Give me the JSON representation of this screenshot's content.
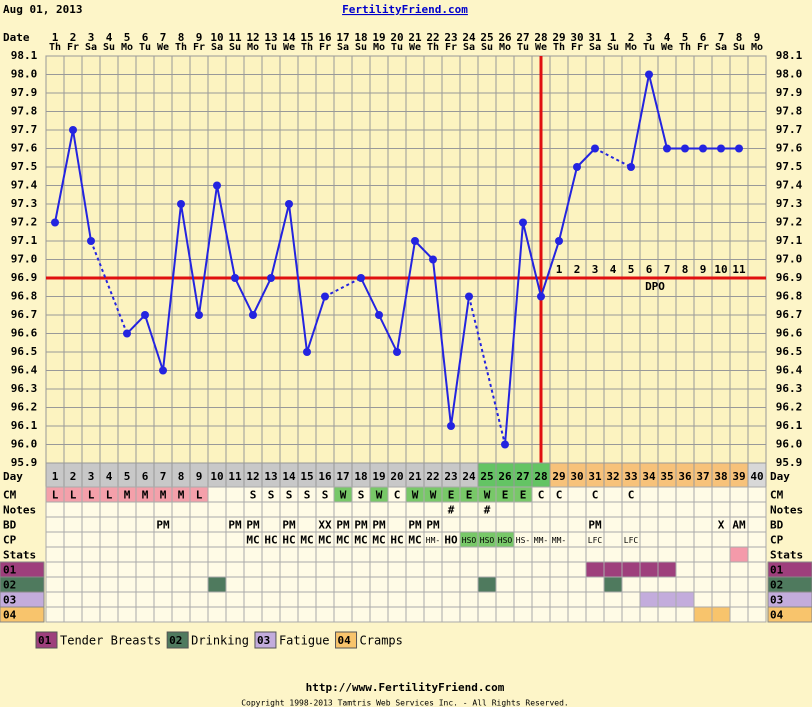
{
  "header": {
    "date": "Aug 01, 2013",
    "site": "FertilityFriend.com"
  },
  "chart_data": {
    "type": "line",
    "date_label": "Date",
    "dates": [
      1,
      2,
      3,
      4,
      5,
      6,
      7,
      8,
      9,
      10,
      11,
      12,
      13,
      14,
      15,
      16,
      17,
      18,
      19,
      20,
      21,
      22,
      23,
      24,
      25,
      26,
      27,
      28,
      29,
      30,
      31,
      1,
      2,
      3,
      4,
      5,
      6,
      7,
      8,
      9
    ],
    "weekdays": [
      "Th",
      "Fr",
      "Sa",
      "Su",
      "Mo",
      "Tu",
      "We",
      "Th",
      "Fr",
      "Sa",
      "Su",
      "Mo",
      "Tu",
      "We",
      "Th",
      "Fr",
      "Sa",
      "Su",
      "Mo",
      "Tu",
      "We",
      "Th",
      "Fr",
      "Sa",
      "Su",
      "Mo",
      "Tu",
      "We",
      "Th",
      "Fr",
      "Sa",
      "Su",
      "Mo",
      "Tu",
      "We",
      "Th",
      "Fr",
      "Sa",
      "Su",
      "Mo"
    ],
    "day_label": "Day",
    "categories": [
      1,
      2,
      3,
      4,
      5,
      6,
      7,
      8,
      9,
      10,
      11,
      12,
      13,
      14,
      15,
      16,
      17,
      18,
      19,
      20,
      21,
      22,
      23,
      24,
      25,
      26,
      27,
      28,
      29,
      30,
      31,
      32,
      33,
      34,
      35,
      36,
      37,
      38,
      39,
      40
    ],
    "day_fills": [
      "#c8c8c8",
      "#c8c8c8",
      "#c8c8c8",
      "#c8c8c8",
      "#c8c8c8",
      "#c8c8c8",
      "#c8c8c8",
      "#c8c8c8",
      "#c8c8c8",
      "#c8c8c8",
      "#c8c8c8",
      "#c8c8c8",
      "#c8c8c8",
      "#c8c8c8",
      "#c8c8c8",
      "#c8c8c8",
      "#c8c8c8",
      "#c8c8c8",
      "#c8c8c8",
      "#c8c8c8",
      "#c8c8c8",
      "#c8c8c8",
      "#c8c8c8",
      "#c8c8c8",
      "#64c464",
      "#64c464",
      "#64c464",
      "#64c464",
      "#f7c27a",
      "#f7c27a",
      "#f7c27a",
      "#f7c27a",
      "#f7c27a",
      "#f7c27a",
      "#f7c27a",
      "#f7c27a",
      "#f7c27a",
      "#f7c27a",
      "#f7c27a",
      "#d8d8d8"
    ],
    "values": [
      97.2,
      97.7,
      97.1,
      null,
      96.6,
      96.7,
      96.4,
      97.3,
      96.7,
      97.4,
      96.9,
      96.7,
      96.9,
      97.3,
      96.5,
      96.8,
      null,
      96.9,
      96.7,
      96.5,
      97.1,
      97.0,
      96.1,
      96.8,
      null,
      96.0,
      97.2,
      96.8,
      97.1,
      97.5,
      97.6,
      null,
      97.5,
      98.0,
      97.6,
      97.6,
      97.6,
      97.6,
      97.6,
      null
    ],
    "color": "#2424e0",
    "ylim": [
      95.9,
      98.1
    ],
    "yticks": [
      95.9,
      {
        "value": 96,
        "label": "96.0"
      },
      96.1,
      96.2,
      96.3,
      96.4,
      96.5,
      96.6,
      96.7,
      96.8,
      96.9,
      {
        "value": 97,
        "label": "97.0"
      },
      97.1,
      97.2,
      97.3,
      97.4,
      97.5,
      97.6,
      97.7,
      97.8,
      97.9,
      {
        "value": 98,
        "label": "98.0"
      },
      98.1
    ],
    "grid": true,
    "coverline": 96.9,
    "ovulation_day": 28,
    "line_color": "#e01010",
    "dpo": [
      1,
      2,
      3,
      4,
      5,
      6,
      7,
      8,
      9,
      10,
      11
    ],
    "dpo_label": "DPO"
  },
  "rows": [
    {
      "label": "CM",
      "cells": [
        "L",
        "L",
        "L",
        "L",
        "M",
        "M",
        "M",
        "M",
        "L",
        null,
        null,
        "S",
        "S",
        "S",
        "S",
        "S",
        "W",
        "S",
        "W",
        "C",
        "W",
        "W",
        "E",
        "E",
        "W",
        "E",
        "E",
        "C",
        "C",
        null,
        "C",
        null,
        "C",
        null,
        null,
        null,
        null,
        null,
        null,
        null
      ],
      "fills": [
        "#f4a0aa",
        "#f4a0aa",
        "#f4a0aa",
        "#f4a0aa",
        "#f4a0aa",
        "#f4a0aa",
        "#f4a0aa",
        "#f4a0aa",
        "#f4a0aa",
        null,
        null,
        null,
        null,
        null,
        null,
        null,
        "#78c868",
        null,
        "#78c868",
        null,
        "#78c868",
        "#78c868",
        "#78c868",
        "#78c868",
        "#78c868",
        "#78c868",
        "#78c868",
        null,
        null,
        null,
        null,
        null,
        null,
        null,
        null,
        null,
        null,
        null,
        null,
        null
      ]
    },
    {
      "label": "Notes",
      "cells": [
        null,
        null,
        null,
        null,
        null,
        null,
        null,
        null,
        null,
        null,
        null,
        null,
        null,
        null,
        null,
        null,
        null,
        null,
        null,
        null,
        null,
        null,
        "#",
        null,
        "#",
        null,
        null,
        null,
        null,
        null,
        null,
        null,
        null,
        null,
        null,
        null,
        null,
        null,
        null,
        null
      ]
    },
    {
      "label": "BD",
      "cells": [
        null,
        null,
        null,
        null,
        null,
        null,
        "PM",
        null,
        null,
        null,
        "PM",
        "PM",
        null,
        "PM",
        null,
        "XX",
        "PM",
        "PM",
        "PM",
        null,
        "PM",
        "PM",
        null,
        null,
        null,
        null,
        null,
        null,
        null,
        null,
        "PM",
        null,
        null,
        null,
        null,
        null,
        null,
        "X",
        "AM",
        null
      ]
    },
    {
      "label": "CP",
      "cells": [
        null,
        null,
        null,
        null,
        null,
        null,
        null,
        null,
        null,
        null,
        null,
        "MC",
        "HC",
        "HC",
        "MC",
        "MC",
        "MC",
        "MC",
        "MC",
        "HC",
        "MC",
        "HM-",
        "HO",
        "HSO",
        "HSO",
        "HSO",
        "HS-",
        "MM-",
        "MM-",
        null,
        "LFC",
        null,
        "LFC",
        null,
        null,
        null,
        null,
        null,
        null,
        null
      ],
      "fills": [
        null,
        null,
        null,
        null,
        null,
        null,
        null,
        null,
        null,
        null,
        null,
        null,
        null,
        null,
        null,
        null,
        null,
        null,
        null,
        null,
        null,
        null,
        null,
        "#78c868",
        "#78c868",
        "#78c868",
        null,
        null,
        null,
        null,
        null,
        null,
        null,
        null,
        null,
        null,
        null,
        null,
        null,
        null
      ]
    },
    {
      "label": "Stats",
      "fills": [
        null,
        null,
        null,
        null,
        null,
        null,
        null,
        null,
        null,
        null,
        null,
        null,
        null,
        null,
        null,
        null,
        null,
        null,
        null,
        null,
        null,
        null,
        null,
        null,
        null,
        null,
        null,
        null,
        null,
        null,
        null,
        null,
        null,
        null,
        null,
        null,
        null,
        null,
        "#f49aaa",
        null
      ]
    },
    {
      "label": "01",
      "label_fill": "#9e3f7c",
      "fills": [
        null,
        null,
        null,
        null,
        null,
        null,
        null,
        null,
        null,
        null,
        null,
        null,
        null,
        null,
        null,
        null,
        null,
        null,
        null,
        null,
        null,
        null,
        null,
        null,
        null,
        null,
        null,
        null,
        null,
        null,
        "#9e3f7c",
        "#9e3f7c",
        "#9e3f7c",
        "#9e3f7c",
        "#9e3f7c",
        null,
        null,
        null,
        null,
        null
      ]
    },
    {
      "label": "02",
      "label_fill": "#4f7a5e",
      "fills": [
        null,
        null,
        null,
        null,
        null,
        null,
        null,
        null,
        null,
        "#4f7a5e",
        null,
        null,
        null,
        null,
        null,
        null,
        null,
        null,
        null,
        null,
        null,
        null,
        null,
        null,
        "#4f7a5e",
        null,
        null,
        null,
        null,
        null,
        null,
        "#4f7a5e",
        null,
        null,
        null,
        null,
        null,
        null,
        null,
        null
      ]
    },
    {
      "label": "03",
      "label_fill": "#c3acdc",
      "fills": [
        null,
        null,
        null,
        null,
        null,
        null,
        null,
        null,
        null,
        null,
        null,
        null,
        null,
        null,
        null,
        null,
        null,
        null,
        null,
        null,
        null,
        null,
        null,
        null,
        null,
        null,
        null,
        null,
        null,
        null,
        null,
        null,
        null,
        "#c3acdc",
        "#c3acdc",
        "#c3acdc",
        null,
        null,
        null,
        null
      ]
    },
    {
      "label": "04",
      "label_fill": "#f8c46c",
      "fills": [
        null,
        null,
        null,
        null,
        null,
        null,
        null,
        null,
        null,
        null,
        null,
        null,
        null,
        null,
        null,
        null,
        null,
        null,
        null,
        null,
        null,
        null,
        null,
        null,
        null,
        null,
        null,
        null,
        null,
        null,
        null,
        null,
        null,
        null,
        null,
        null,
        "#f8c46c",
        "#f8c46c",
        null,
        null
      ]
    }
  ],
  "legend": [
    {
      "code": "01",
      "name": "Tender Breasts",
      "color": "#9e3f7c"
    },
    {
      "code": "02",
      "name": "Drinking",
      "color": "#4f7a5e"
    },
    {
      "code": "03",
      "name": "Fatigue",
      "color": "#c3acdc"
    },
    {
      "code": "04",
      "name": "Cramps",
      "color": "#f8c46c"
    }
  ],
  "footer": {
    "url": "http://www.FertilityFriend.com",
    "copyright": "Copyright 1998-2013 Tamtris Web Services Inc. - All Rights Reserved."
  }
}
